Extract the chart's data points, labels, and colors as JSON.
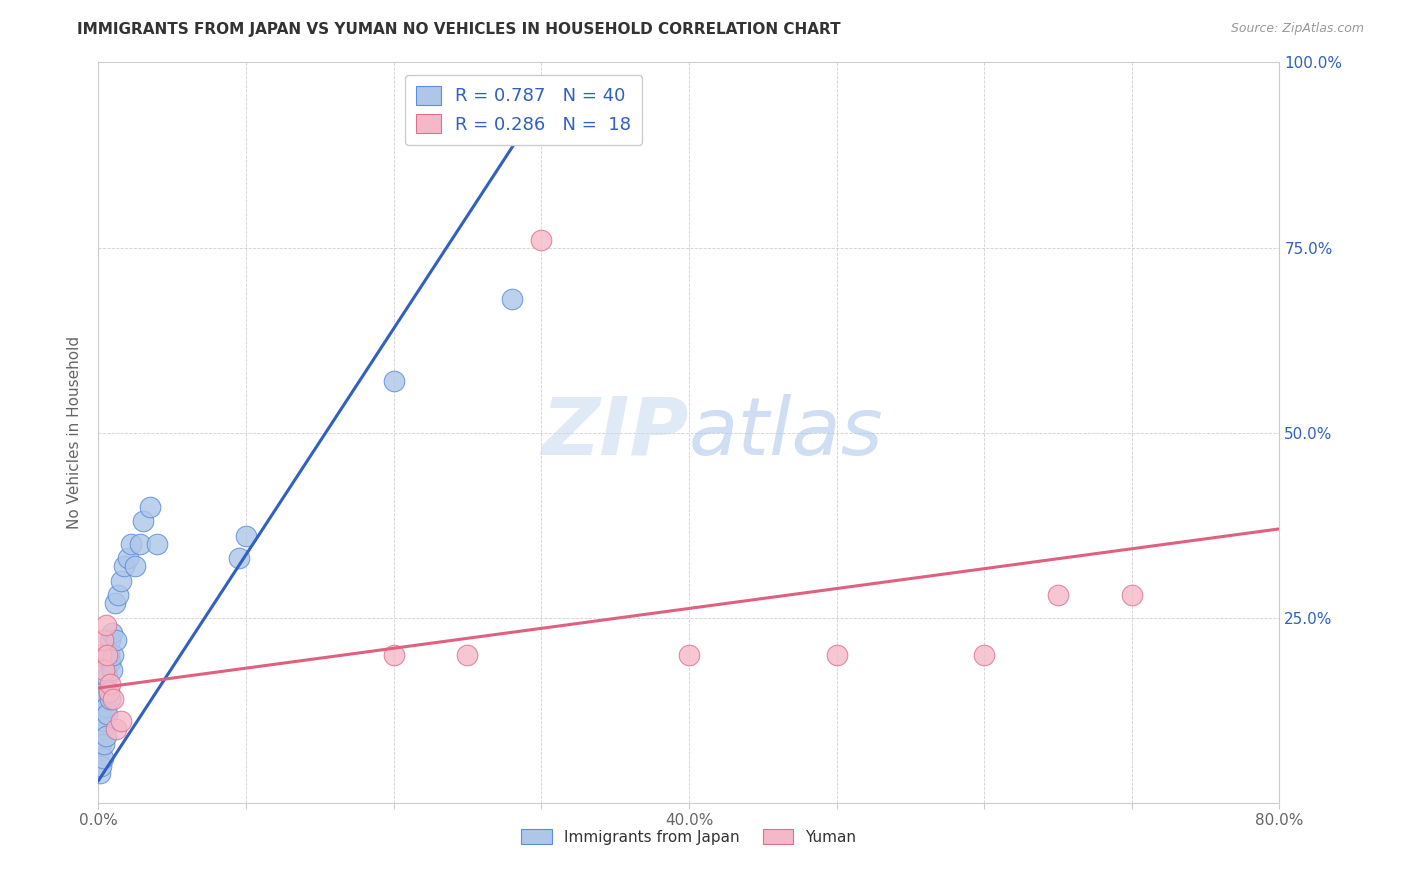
{
  "title": "IMMIGRANTS FROM JAPAN VS YUMAN NO VEHICLES IN HOUSEHOLD CORRELATION CHART",
  "source": "Source: ZipAtlas.com",
  "ylabel": "No Vehicles in Household",
  "xlim": [
    0.0,
    0.8
  ],
  "ylim": [
    0.0,
    1.0
  ],
  "xticks": [
    0.0,
    0.1,
    0.2,
    0.3,
    0.4,
    0.5,
    0.6,
    0.7,
    0.8
  ],
  "xticklabels": [
    "0.0%",
    "",
    "",
    "",
    "40.0%",
    "",
    "",
    "",
    "80.0%"
  ],
  "yticks": [
    0.0,
    0.25,
    0.5,
    0.75,
    1.0
  ],
  "yticklabels_right": [
    "",
    "25.0%",
    "50.0%",
    "75.0%",
    "100.0%"
  ],
  "legend_blue_r": "R = 0.787",
  "legend_blue_n": "N = 40",
  "legend_pink_r": "R = 0.286",
  "legend_pink_n": "N =  18",
  "blue_fill_color": "#aec6e8",
  "pink_fill_color": "#f4b8c8",
  "blue_edge_color": "#5b8dd9",
  "pink_edge_color": "#e07090",
  "blue_line_color": "#3060c0",
  "pink_line_color": "#e06080",
  "legend_label_blue": "Immigrants from Japan",
  "legend_label_pink": "Yuman",
  "blue_x": [
    0.001,
    0.001,
    0.002,
    0.002,
    0.002,
    0.003,
    0.003,
    0.003,
    0.004,
    0.004,
    0.004,
    0.005,
    0.005,
    0.005,
    0.006,
    0.006,
    0.007,
    0.007,
    0.008,
    0.008,
    0.008,
    0.009,
    0.009,
    0.01,
    0.011,
    0.012,
    0.013,
    0.015,
    0.017,
    0.02,
    0.022,
    0.025,
    0.028,
    0.03,
    0.035,
    0.04,
    0.095,
    0.1,
    0.2,
    0.28
  ],
  "blue_y": [
    0.04,
    0.07,
    0.05,
    0.08,
    0.12,
    0.06,
    0.1,
    0.14,
    0.08,
    0.11,
    0.15,
    0.09,
    0.13,
    0.18,
    0.12,
    0.17,
    0.15,
    0.2,
    0.14,
    0.19,
    0.22,
    0.18,
    0.23,
    0.2,
    0.27,
    0.22,
    0.28,
    0.3,
    0.32,
    0.33,
    0.35,
    0.32,
    0.35,
    0.38,
    0.4,
    0.35,
    0.33,
    0.36,
    0.57,
    0.68
  ],
  "pink_x": [
    0.002,
    0.003,
    0.004,
    0.005,
    0.006,
    0.007,
    0.008,
    0.01,
    0.012,
    0.015,
    0.2,
    0.25,
    0.3,
    0.4,
    0.5,
    0.6,
    0.65,
    0.7
  ],
  "pink_y": [
    0.2,
    0.22,
    0.18,
    0.24,
    0.2,
    0.15,
    0.16,
    0.14,
    0.1,
    0.11,
    0.2,
    0.2,
    0.76,
    0.2,
    0.2,
    0.2,
    0.28,
    0.28
  ],
  "blue_trend_x0": 0.0,
  "blue_trend_x1": 0.285,
  "blue_trend_y0": 0.03,
  "blue_trend_y1": 0.9,
  "pink_trend_x0": 0.0,
  "pink_trend_x1": 0.8,
  "pink_trend_y0": 0.155,
  "pink_trend_y1": 0.37
}
